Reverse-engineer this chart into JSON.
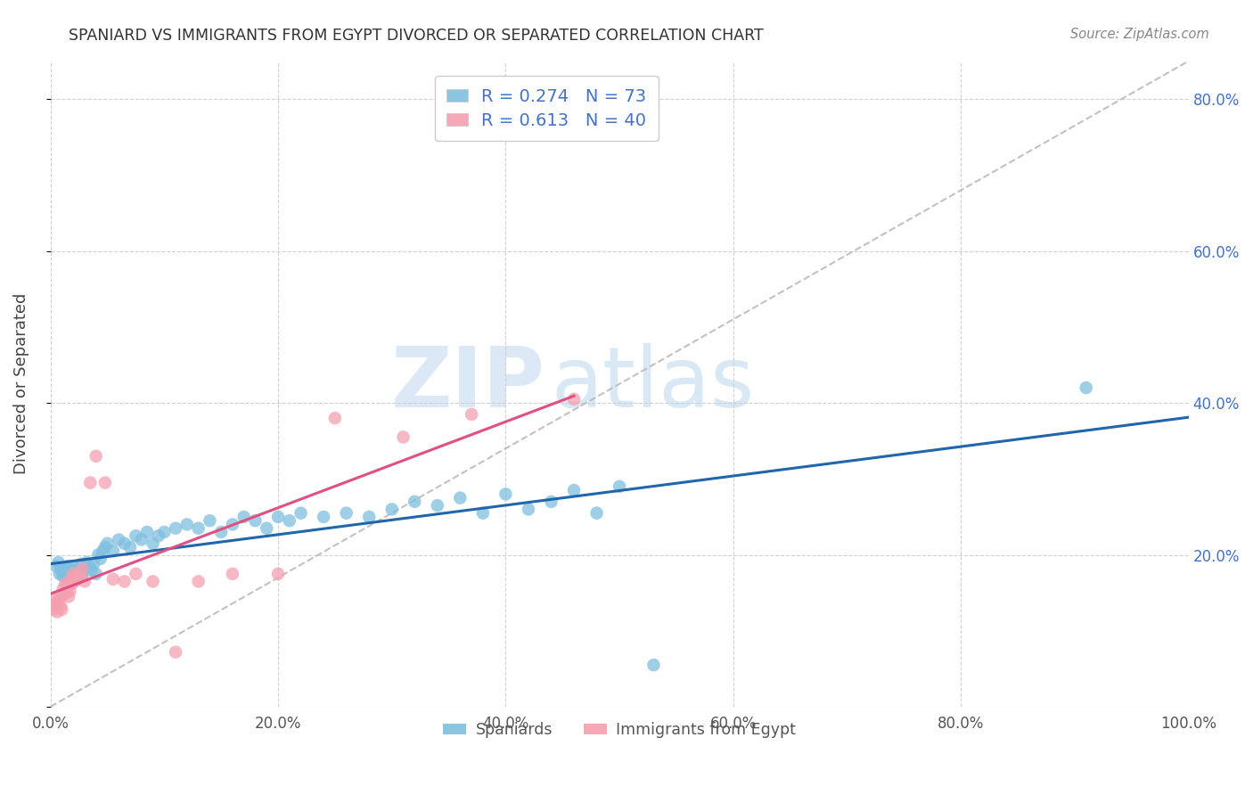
{
  "title": "SPANIARD VS IMMIGRANTS FROM EGYPT DIVORCED OR SEPARATED CORRELATION CHART",
  "source": "Source: ZipAtlas.com",
  "ylabel": "Divorced or Separated",
  "xlim": [
    0,
    1.0
  ],
  "ylim": [
    0,
    0.85
  ],
  "xticks": [
    0.0,
    0.2,
    0.4,
    0.6,
    0.8,
    1.0
  ],
  "yticks_right": [
    0.2,
    0.4,
    0.6,
    0.8
  ],
  "xtick_labels": [
    "0.0%",
    "20.0%",
    "40.0%",
    "60.0%",
    "80.0%",
    "100.0%"
  ],
  "ytick_labels_right": [
    "20.0%",
    "40.0%",
    "60.0%",
    "80.0%"
  ],
  "spaniards_color": "#7fbfdf",
  "egypt_color": "#f4a0b0",
  "spaniards_line_color": "#2166ac",
  "egypt_line_color": "#e05080",
  "diag_color": "#bbbbbb",
  "spaniards_R": "0.274",
  "spaniards_N": "73",
  "egypt_R": "0.613",
  "egypt_N": "40",
  "legend_label_1": "Spaniards",
  "legend_label_2": "Immigrants from Egypt",
  "watermark_zip": "ZIP",
  "watermark_atlas": "atlas",
  "text_color_blue": "#4472c4",
  "spaniards_x": [
    0.005,
    0.007,
    0.008,
    0.009,
    0.01,
    0.011,
    0.012,
    0.013,
    0.014,
    0.015,
    0.016,
    0.017,
    0.018,
    0.019,
    0.02,
    0.021,
    0.022,
    0.023,
    0.024,
    0.025,
    0.026,
    0.027,
    0.028,
    0.029,
    0.03,
    0.032,
    0.034,
    0.036,
    0.038,
    0.04,
    0.042,
    0.044,
    0.046,
    0.048,
    0.05,
    0.055,
    0.06,
    0.065,
    0.07,
    0.075,
    0.08,
    0.085,
    0.09,
    0.095,
    0.1,
    0.11,
    0.12,
    0.13,
    0.14,
    0.15,
    0.16,
    0.17,
    0.18,
    0.19,
    0.2,
    0.21,
    0.22,
    0.24,
    0.26,
    0.28,
    0.3,
    0.32,
    0.34,
    0.36,
    0.38,
    0.4,
    0.42,
    0.44,
    0.46,
    0.48,
    0.5,
    0.91,
    0.53
  ],
  "spaniards_y": [
    0.185,
    0.19,
    0.175,
    0.182,
    0.178,
    0.172,
    0.18,
    0.175,
    0.17,
    0.185,
    0.178,
    0.182,
    0.17,
    0.175,
    0.185,
    0.18,
    0.175,
    0.172,
    0.168,
    0.178,
    0.182,
    0.188,
    0.175,
    0.18,
    0.185,
    0.19,
    0.185,
    0.18,
    0.188,
    0.175,
    0.2,
    0.195,
    0.205,
    0.21,
    0.215,
    0.205,
    0.22,
    0.215,
    0.21,
    0.225,
    0.22,
    0.23,
    0.215,
    0.225,
    0.23,
    0.235,
    0.24,
    0.235,
    0.245,
    0.23,
    0.24,
    0.25,
    0.245,
    0.235,
    0.25,
    0.245,
    0.255,
    0.25,
    0.255,
    0.25,
    0.26,
    0.27,
    0.265,
    0.275,
    0.255,
    0.28,
    0.26,
    0.27,
    0.285,
    0.255,
    0.29,
    0.42,
    0.055
  ],
  "egypt_x": [
    0.002,
    0.003,
    0.004,
    0.005,
    0.006,
    0.007,
    0.008,
    0.009,
    0.01,
    0.011,
    0.012,
    0.013,
    0.014,
    0.015,
    0.016,
    0.017,
    0.018,
    0.019,
    0.02,
    0.021,
    0.022,
    0.024,
    0.026,
    0.028,
    0.03,
    0.035,
    0.04,
    0.048,
    0.055,
    0.065,
    0.075,
    0.09,
    0.11,
    0.13,
    0.16,
    0.2,
    0.25,
    0.31,
    0.37,
    0.46
  ],
  "egypt_y": [
    0.135,
    0.128,
    0.14,
    0.132,
    0.125,
    0.138,
    0.145,
    0.132,
    0.128,
    0.155,
    0.148,
    0.162,
    0.15,
    0.158,
    0.145,
    0.152,
    0.168,
    0.162,
    0.175,
    0.165,
    0.172,
    0.168,
    0.175,
    0.182,
    0.165,
    0.295,
    0.33,
    0.295,
    0.168,
    0.165,
    0.175,
    0.165,
    0.072,
    0.165,
    0.175,
    0.175,
    0.38,
    0.355,
    0.385,
    0.405
  ]
}
